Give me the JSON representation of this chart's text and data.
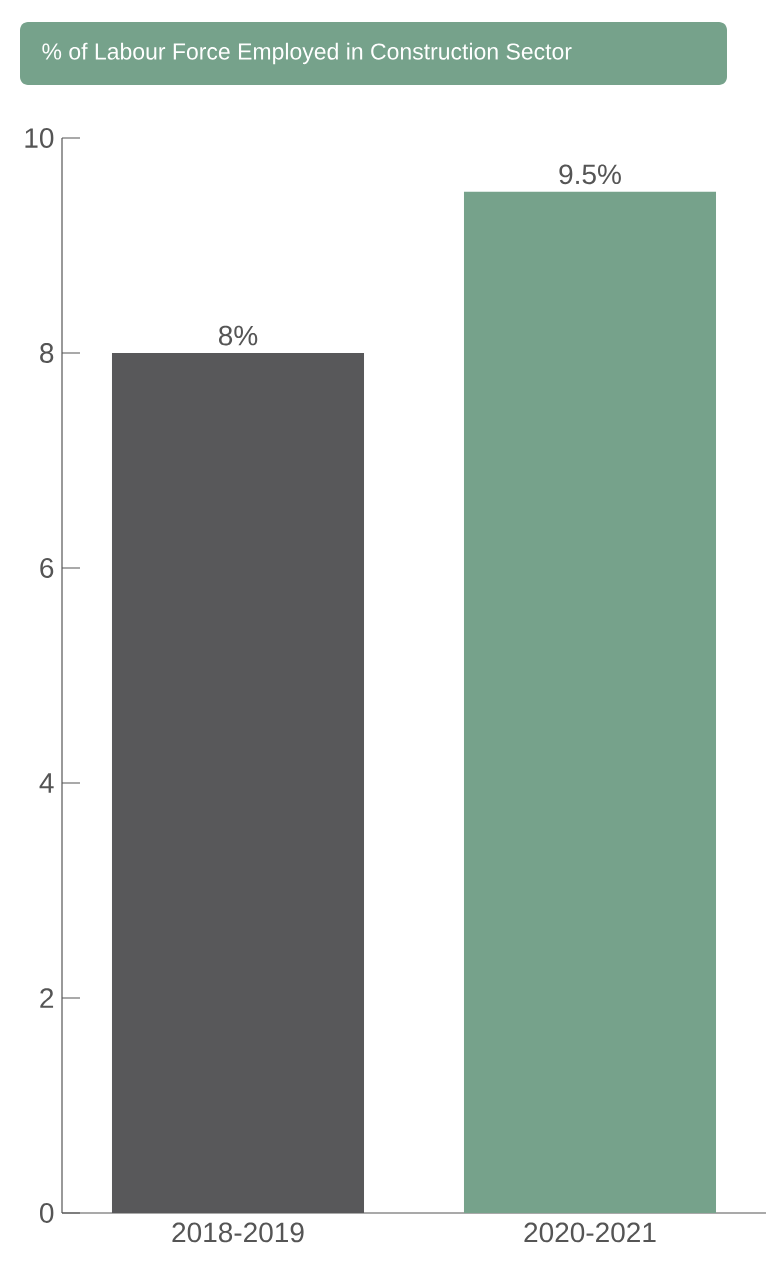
{
  "chart_data": {
    "type": "bar",
    "title": "% of Labour Force Employed in Construction Sector",
    "categories": [
      "2018-2019",
      "2020-2021"
    ],
    "values": [
      8,
      9.5
    ],
    "colors": [
      "#58585a",
      "#76a28b"
    ],
    "value_labels": [
      "8%",
      "9.5%"
    ],
    "ylim": [
      0,
      10
    ],
    "yticks": [
      0,
      2,
      4,
      6,
      8,
      10
    ],
    "grid": false
  }
}
